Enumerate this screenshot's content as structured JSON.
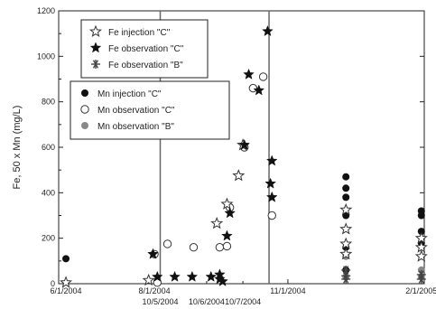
{
  "chart_data": {
    "type": "scatter",
    "title": "",
    "xlabel": "",
    "ylabel": "Fe, 50 x Mn (mg/L)",
    "ylim": [
      0,
      1200
    ],
    "xlim": [
      "2004-05-27",
      "2005-02-03"
    ],
    "yticks": [
      0,
      200,
      400,
      600,
      800,
      1000,
      1200
    ],
    "xticks_top": [
      {
        "date": "2004-06-01",
        "label": "6/1/2004"
      },
      {
        "date": "2004-08-01",
        "label": "8/1/2004"
      },
      {
        "date": "2004-11-01",
        "label": "11/1/2004"
      },
      {
        "date": "2005-02-01",
        "label": "2/1/2005"
      }
    ],
    "xticks_bottom": [
      {
        "date": "2004-08-05",
        "label": "10/5/2004"
      },
      {
        "date": "2004-09-06",
        "label": "10/6/2004"
      },
      {
        "date": "2004-10-01",
        "label": "10/7/2004"
      }
    ],
    "vertical_lines": [
      "2004-08-05",
      "2004-10-19"
    ],
    "grid": false,
    "legend_placement": "top-left",
    "legends": [
      {
        "entries": [
          "Fe injection \"C\"",
          "Fe observation \"C\"",
          "Fe observation \"B\""
        ]
      },
      {
        "entries": [
          "Mn injection \"C\"",
          "Mn observation \"C\"",
          "Mn observation \"B\""
        ]
      }
    ],
    "series": [
      {
        "name": "Fe injection \"C\"",
        "marker": "star-open",
        "color": "#333333",
        "x": [
          "2004-06-01",
          "2004-07-28",
          "2004-09-13",
          "2004-09-20",
          "2004-09-28",
          "2004-10-01",
          "2004-12-11",
          "2004-12-11",
          "2004-12-11",
          "2004-12-11",
          "2005-02-01",
          "2005-02-01",
          "2005-02-01"
        ],
        "y": [
          5,
          15,
          265,
          350,
          475,
          610,
          325,
          240,
          175,
          130,
          200,
          160,
          120
        ]
      },
      {
        "name": "Fe observation \"C\"",
        "marker": "star-filled",
        "color": "#111111",
        "x": [
          "2004-07-31",
          "2004-08-03",
          "2004-08-15",
          "2004-08-27",
          "2004-09-09",
          "2004-09-15",
          "2004-09-17",
          "2004-09-15",
          "2004-09-20",
          "2004-09-22",
          "2004-10-02",
          "2004-10-05",
          "2004-10-12",
          "2004-10-18",
          "2004-10-20",
          "2004-10-21",
          "2004-10-21"
        ],
        "y": [
          130,
          30,
          30,
          30,
          30,
          20,
          10,
          40,
          210,
          310,
          610,
          920,
          850,
          1110,
          440,
          540,
          380
        ]
      },
      {
        "name": "Fe observation \"B\"",
        "marker": "asterisk",
        "color": "#444444",
        "x": [
          "2004-12-11",
          "2004-12-11",
          "2004-12-11",
          "2005-02-01",
          "2005-02-01"
        ],
        "y": [
          60,
          35,
          20,
          40,
          20
        ]
      },
      {
        "name": "Mn injection \"C\"",
        "marker": "circle-filled",
        "color": "#111111",
        "x": [
          "2004-06-01",
          "2004-08-01",
          "2004-12-11",
          "2004-12-11",
          "2004-12-11",
          "2004-12-11",
          "2004-12-11",
          "2004-12-11",
          "2005-02-01",
          "2005-02-01",
          "2005-02-01",
          "2005-02-01"
        ],
        "y": [
          110,
          130,
          470,
          420,
          380,
          300,
          160,
          60,
          320,
          300,
          230,
          180
        ]
      },
      {
        "name": "Mn observation \"C\"",
        "marker": "circle-open",
        "color": "#333333",
        "x": [
          "2004-08-01",
          "2004-08-03",
          "2004-08-10",
          "2004-08-28",
          "2004-09-15",
          "2004-09-20",
          "2004-09-22",
          "2004-10-02",
          "2004-10-08",
          "2004-10-15",
          "2004-10-21"
        ],
        "y": [
          130,
          5,
          175,
          160,
          160,
          165,
          335,
          600,
          860,
          910,
          300
        ]
      },
      {
        "name": "Mn observation \"B\"",
        "marker": "circle-gray",
        "color": "#888888",
        "x": [
          "2004-12-11",
          "2004-12-11",
          "2005-02-01",
          "2005-02-01"
        ],
        "y": [
          120,
          30,
          60,
          30
        ]
      }
    ]
  }
}
